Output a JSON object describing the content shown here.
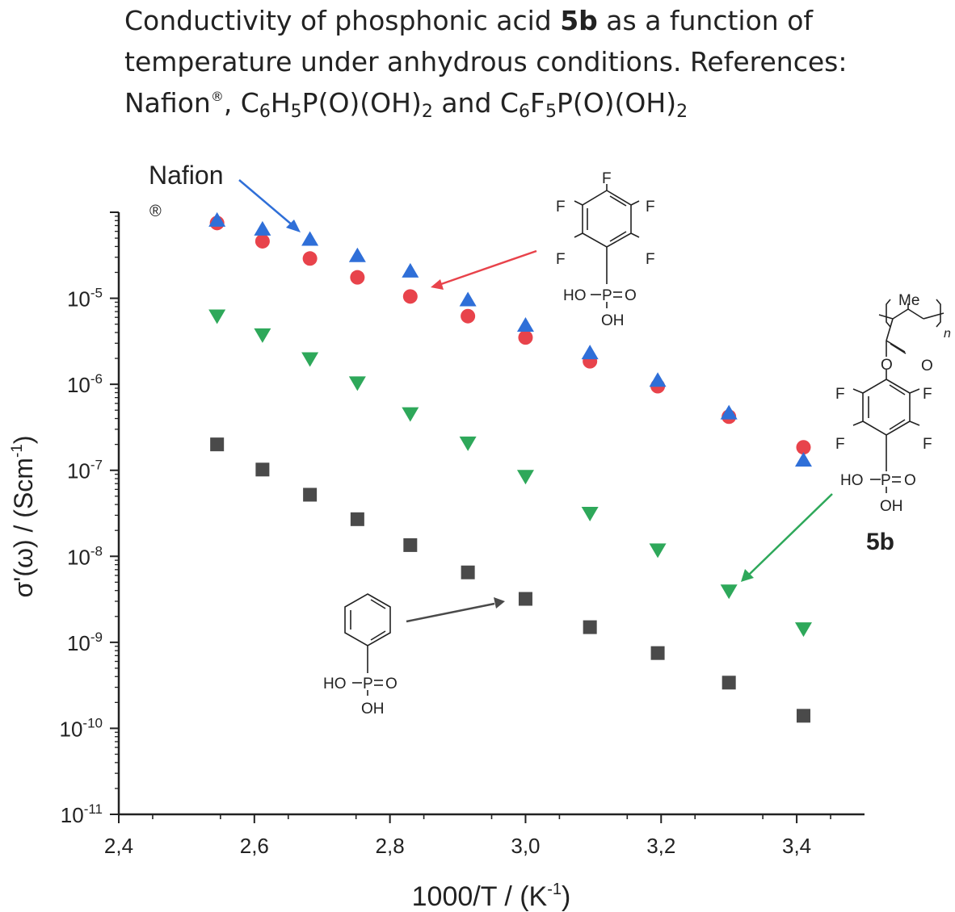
{
  "caption": {
    "line1_pre": "Conductivity of phosphonic acid ",
    "line1_bold": "5b",
    "line1_post": " as a function of",
    "line2": "temperature under anhydrous conditions. References:",
    "line3_a": "Nafion",
    "line3_reg": "®",
    "line3_b": ", C",
    "sub_6a": "6",
    "line3_c": "H",
    "sub_5a": "5",
    "line3_d": "P(O)(OH)",
    "sub_2a": "2",
    "line3_e": " and C",
    "sub_6b": "6",
    "line3_f": "F",
    "sub_5b": "5",
    "line3_g": "P(O)(OH)",
    "sub_2b": "2"
  },
  "annotations": {
    "nafion_label": "Nafion",
    "nafion_reg": "®",
    "compound_5b_label": "5b",
    "me_label": "Me",
    "n_label": "n",
    "f_label": "F",
    "o_label": "O",
    "p_label": "P",
    "ho_label": "HO",
    "oh_label": "OH"
  },
  "chart_data": {
    "type": "scatter",
    "xlabel": "1000/T / (K",
    "xlabel_sup": "-1",
    "xlabel_end": ")",
    "ylabel": "σ'(ω) / (Scm",
    "ylabel_sup": "-1",
    "ylabel_end": ")",
    "xlim": [
      2.4,
      3.5
    ],
    "ylim_exponents": [
      -11,
      -4
    ],
    "y_scale": "log",
    "x_ticks": [
      2.4,
      2.6,
      2.8,
      3.0,
      3.2,
      3.4
    ],
    "x_tick_labels": [
      "2,4",
      "2,6",
      "2,8",
      "3,0",
      "3,2",
      "3,4"
    ],
    "y_ticks": [
      -11,
      -10,
      -9,
      -8,
      -7,
      -6,
      -5
    ],
    "y_tick_labels": [
      "10-11",
      "10-10",
      "10-9",
      "10-8",
      "10-7",
      "10-6",
      "10-5"
    ],
    "y_tick_base": "10",
    "y_tick_exponents": [
      "-11",
      "-10",
      "-9",
      "-8",
      "-7",
      "-6",
      "-5"
    ],
    "grid": false,
    "series": [
      {
        "marker": "square",
        "color": "#4a4a4a",
        "x": [
          2.545,
          2.612,
          2.682,
          2.752,
          2.83,
          2.915,
          3.0,
          3.095,
          3.195,
          3.3,
          3.41
        ],
        "y": [
          2e-07,
          1.02e-07,
          5.2e-08,
          2.7e-08,
          1.35e-08,
          6.5e-09,
          3.2e-09,
          1.5e-09,
          7.5e-10,
          3.4e-10,
          1.4e-10
        ]
      },
      {
        "marker": "triangle-down",
        "color": "#2ea85a",
        "x": [
          2.545,
          2.612,
          2.682,
          2.752,
          2.83,
          2.915,
          3.0,
          3.095,
          3.195,
          3.3,
          3.41
        ],
        "y": [
          6.3e-06,
          3.8e-06,
          2e-06,
          1.05e-06,
          4.6e-07,
          2.1e-07,
          8.6e-08,
          3.2e-08,
          1.2e-08,
          4e-09,
          1.45e-09
        ]
      },
      {
        "marker": "circle",
        "color": "#e8434b",
        "x": [
          2.545,
          2.612,
          2.682,
          2.752,
          2.83,
          2.915,
          3.0,
          3.095,
          3.195,
          3.3,
          3.41
        ],
        "y": [
          7.5e-05,
          4.6e-05,
          2.9e-05,
          1.75e-05,
          1.05e-05,
          6.2e-06,
          3.5e-06,
          1.85e-06,
          9.5e-07,
          4.2e-07,
          1.85e-07
        ]
      },
      {
        "marker": "triangle-up",
        "color": "#2f6fd8",
        "x": [
          2.545,
          2.612,
          2.682,
          2.752,
          2.83,
          2.915,
          3.0,
          3.095,
          3.195,
          3.3,
          3.41
        ],
        "y": [
          8e-05,
          6.3e-05,
          4.8e-05,
          3.1e-05,
          2.05e-05,
          9.5e-06,
          4.8e-06,
          2.3e-06,
          1.1e-06,
          4.6e-07,
          1.3e-07
        ]
      }
    ]
  },
  "colors": {
    "nafion_arrow": "#2f6fd8",
    "c6f5_arrow": "#e8434b",
    "compound_5b_arrow": "#2ea85a",
    "c6h5_arrow": "#4a4a4a"
  }
}
